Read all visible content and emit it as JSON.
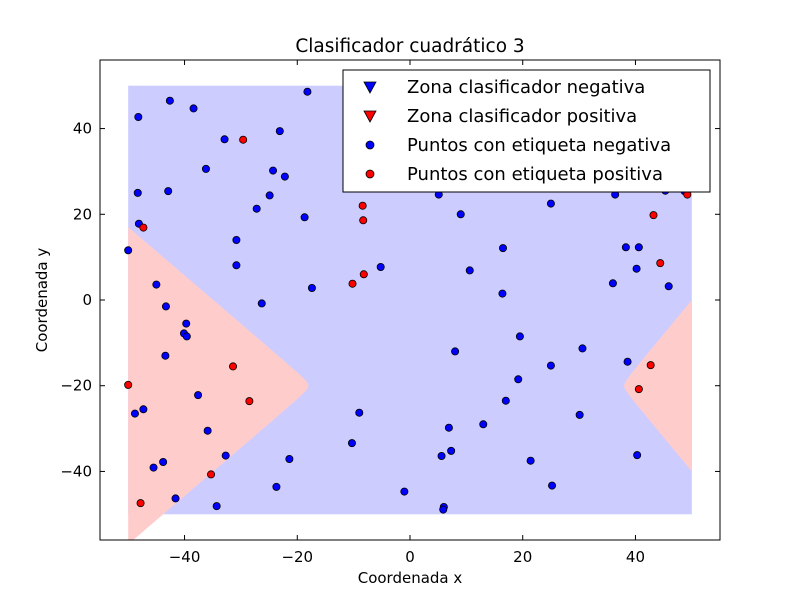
{
  "chart_data": {
    "type": "scatter",
    "title": "Clasificador cuadrático 3",
    "xlabel": "Coordenada x",
    "ylabel": "Coordenada y",
    "xlim": [
      -55,
      55
    ],
    "ylim": [
      -56,
      56
    ],
    "x_ticks": [
      -40,
      -20,
      0,
      20,
      40
    ],
    "y_ticks": [
      -40,
      -20,
      0,
      20,
      40
    ],
    "x_tick_labels": [
      "−40",
      "−20",
      "0",
      "20",
      "40"
    ],
    "y_tick_labels": [
      "−40",
      "−20",
      "0",
      "20",
      "40"
    ],
    "grid": false,
    "legend_position": "top-right",
    "region_extent": {
      "x": [
        -50,
        50
      ],
      "y": [
        -50,
        50
      ]
    },
    "regions": {
      "negative_color": "#ccccff",
      "positive_color": "#ffcccc",
      "left_boundary": {
        "vertex_x": -18,
        "vertex_y": -20,
        "edge_x": -50,
        "edge_half_width": 37
      },
      "right_boundary": {
        "vertex_x": 38,
        "vertex_y": -20,
        "edge_x": 50,
        "edge_half_width": 20
      }
    },
    "legend": [
      {
        "label": "Zona clasificador negativa",
        "marker": "triangle-down",
        "color": "#0000ff"
      },
      {
        "label": "Zona clasificador positiva",
        "marker": "triangle-down",
        "color": "#ff0000"
      },
      {
        "label": "Puntos con etiqueta negativa",
        "marker": "circle",
        "color": "#0000ff"
      },
      {
        "label": "Puntos con etiqueta positiva",
        "marker": "circle",
        "color": "#ff0000"
      }
    ],
    "series": [
      {
        "name": "Puntos con etiqueta negativa",
        "color": "#0000ff",
        "points": [
          [
            -48.2,
            42.7
          ],
          [
            -42.6,
            46.5
          ],
          [
            -38.4,
            44.7
          ],
          [
            -18.2,
            48.6
          ],
          [
            -32.9,
            37.5
          ],
          [
            -23.1,
            39.4
          ],
          [
            -36.2,
            30.6
          ],
          [
            -24.3,
            30.2
          ],
          [
            -22.2,
            28.8
          ],
          [
            -48.3,
            25.0
          ],
          [
            -42.9,
            25.4
          ],
          [
            -24.9,
            24.4
          ],
          [
            -27.2,
            21.3
          ],
          [
            -18.7,
            19.3
          ],
          [
            -48.1,
            17.8
          ],
          [
            -30.8,
            14.0
          ],
          [
            -50.0,
            11.6
          ],
          [
            -30.8,
            8.1
          ],
          [
            -5.2,
            7.7
          ],
          [
            -17.4,
            2.8
          ],
          [
            -26.3,
            -0.8
          ],
          [
            -45.0,
            3.6
          ],
          [
            -43.3,
            -1.5
          ],
          [
            -39.7,
            -5.5
          ],
          [
            -40.1,
            -7.8
          ],
          [
            -39.6,
            -8.5
          ],
          [
            -43.4,
            -13.0
          ],
          [
            -37.6,
            -22.2
          ],
          [
            -9.0,
            -26.3
          ],
          [
            -48.8,
            -26.5
          ],
          [
            -47.3,
            -25.5
          ],
          [
            -35.9,
            -30.5
          ],
          [
            -10.3,
            -33.4
          ],
          [
            -32.7,
            -36.3
          ],
          [
            -21.4,
            -37.1
          ],
          [
            -43.8,
            -37.8
          ],
          [
            -45.5,
            -39.1
          ],
          [
            -23.7,
            -43.6
          ],
          [
            -41.6,
            -46.3
          ],
          [
            -34.3,
            -48.1
          ],
          [
            -1.0,
            -44.7
          ],
          [
            5.1,
            24.6
          ],
          [
            9.0,
            20.0
          ],
          [
            16.5,
            12.1
          ],
          [
            10.6,
            6.9
          ],
          [
            16.4,
            1.5
          ],
          [
            8.0,
            -12.0
          ],
          [
            19.5,
            -8.5
          ],
          [
            19.2,
            -18.5
          ],
          [
            17.0,
            -23.5
          ],
          [
            13.0,
            -29.0
          ],
          [
            6.9,
            -29.8
          ],
          [
            7.3,
            -35.2
          ],
          [
            5.6,
            -36.4
          ],
          [
            21.4,
            -37.5
          ],
          [
            6.0,
            -48.3
          ],
          [
            5.9,
            -48.9
          ],
          [
            25.0,
            22.5
          ],
          [
            25.0,
            -15.3
          ],
          [
            30.6,
            -11.3
          ],
          [
            30.1,
            -26.8
          ],
          [
            25.2,
            -43.3
          ],
          [
            36.4,
            24.6
          ],
          [
            38.3,
            12.3
          ],
          [
            40.6,
            12.3
          ],
          [
            40.2,
            7.3
          ],
          [
            36.0,
            3.9
          ],
          [
            45.9,
            3.2
          ],
          [
            38.6,
            -14.4
          ],
          [
            40.3,
            -36.2
          ],
          [
            48.7,
            25.4
          ],
          [
            45.3,
            25.5
          ]
        ]
      },
      {
        "name": "Puntos con etiqueta positiva",
        "color": "#ff0000",
        "points": [
          [
            -29.6,
            37.4
          ],
          [
            -8.4,
            22.0
          ],
          [
            -8.3,
            18.6
          ],
          [
            -47.3,
            16.9
          ],
          [
            -8.2,
            6.0
          ],
          [
            -10.2,
            3.8
          ],
          [
            -31.4,
            -15.5
          ],
          [
            -50.0,
            -19.8
          ],
          [
            -28.5,
            -23.6
          ],
          [
            -35.3,
            -40.7
          ],
          [
            -47.8,
            -47.4
          ],
          [
            43.2,
            19.8
          ],
          [
            44.4,
            8.6
          ],
          [
            42.7,
            -15.2
          ],
          [
            40.6,
            -20.8
          ],
          [
            49.2,
            24.6
          ]
        ]
      }
    ]
  }
}
